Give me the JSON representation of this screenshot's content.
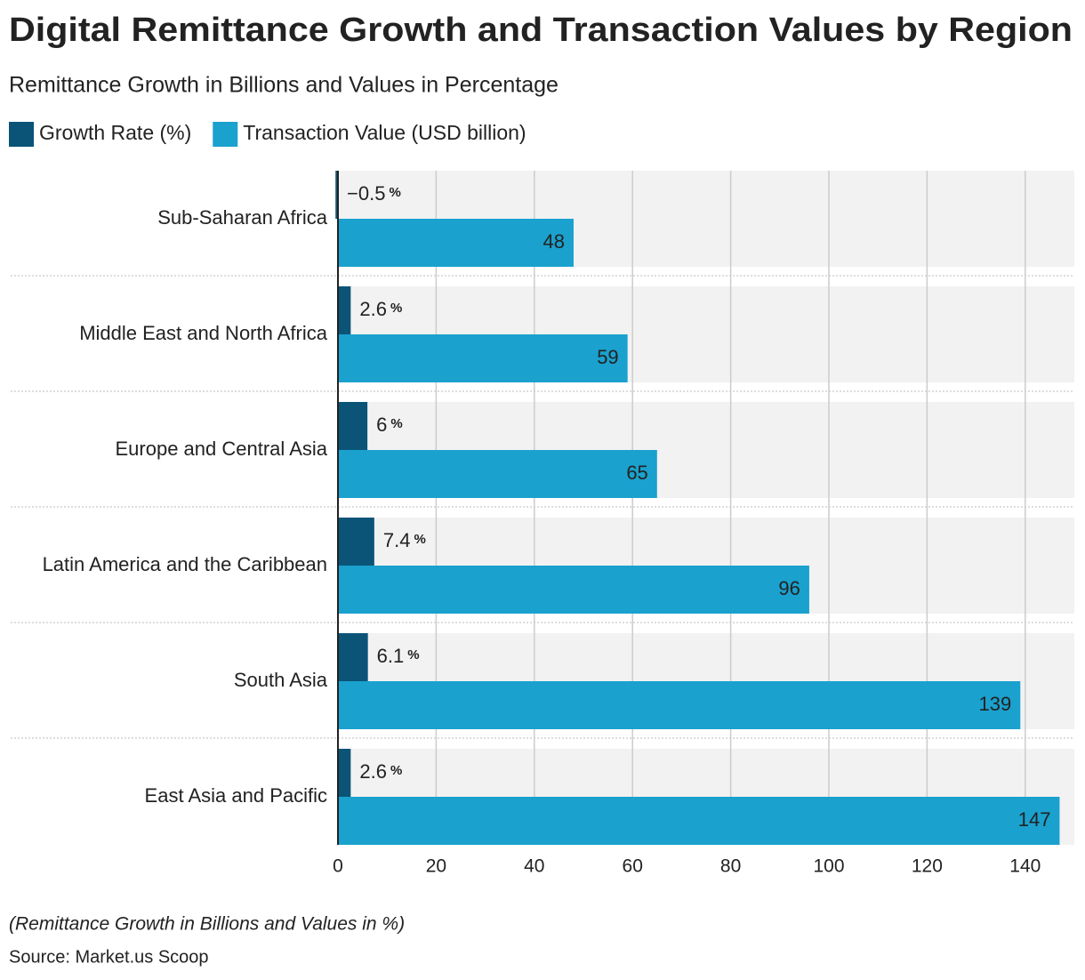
{
  "chart_data": {
    "type": "bar",
    "orientation": "horizontal",
    "title": "Digital Remittance Growth and Transaction Values by Region",
    "subtitle": "Remittance Growth in Billions and Values in Percentage",
    "categories": [
      "Sub-Saharan Africa",
      "Middle East and North Africa",
      "Europe and Central Asia",
      "Latin America and the Caribbean",
      "South Asia",
      "East Asia and Pacific"
    ],
    "series": [
      {
        "name": "Growth Rate (%)",
        "color": "#0b5478",
        "values": [
          -0.5,
          2.6,
          6,
          7.4,
          6.1,
          2.6
        ],
        "value_labels": [
          "−0.5",
          "2.6",
          "6",
          "7.4",
          "6.1",
          "2.6"
        ],
        "value_suffix": "%"
      },
      {
        "name": "Transaction Value (USD billion)",
        "color": "#1aa1ce",
        "values": [
          48,
          59,
          65,
          96,
          139,
          147
        ]
      }
    ],
    "xlim": [
      0,
      150
    ],
    "xticks": [
      0,
      20,
      40,
      60,
      80,
      100,
      120,
      140
    ],
    "grid": true,
    "legend": "top-left",
    "note": "(Remittance Growth in Billions and Values in %)",
    "source": "Source: Market.us Scoop"
  }
}
